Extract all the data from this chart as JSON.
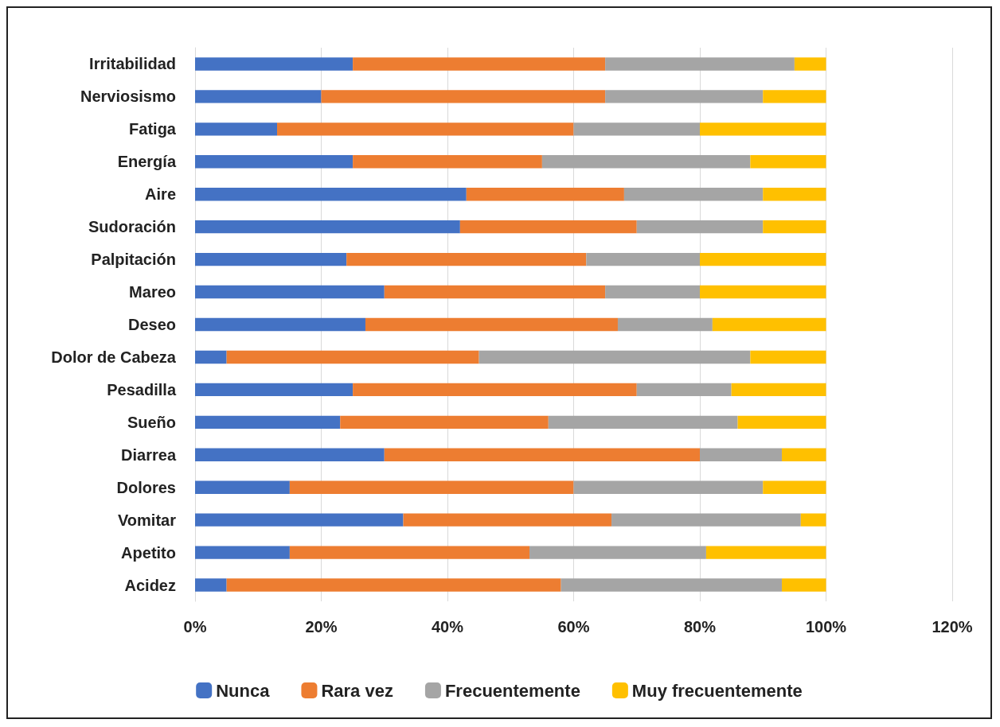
{
  "chart_data": {
    "type": "bar",
    "orientation": "horizontal",
    "stacked": true,
    "categories": [
      "Irritabilidad",
      "Nerviosismo",
      "Fatiga",
      "Energía",
      "Aire",
      "Sudoración",
      "Palpitación",
      "Mareo",
      "Deseo",
      "Dolor de Cabeza",
      "Pesadilla",
      "Sueño",
      "Diarrea",
      "Dolores",
      "Vomitar",
      "Apetito",
      "Acidez"
    ],
    "series": [
      {
        "name": "Nunca",
        "color": "#4472c4",
        "values": [
          25,
          20,
          13,
          25,
          43,
          42,
          24,
          30,
          27,
          5,
          25,
          23,
          30,
          15,
          33,
          15,
          5
        ]
      },
      {
        "name": "Rara vez",
        "color": "#ed7d31",
        "values": [
          40,
          45,
          47,
          30,
          25,
          28,
          38,
          35,
          40,
          40,
          45,
          33,
          50,
          45,
          33,
          38,
          53
        ]
      },
      {
        "name": "Frecuentemente",
        "color": "#a5a5a5",
        "values": [
          30,
          25,
          20,
          33,
          22,
          20,
          18,
          15,
          15,
          43,
          15,
          30,
          13,
          30,
          30,
          28,
          35
        ]
      },
      {
        "name": "Muy frecuentemente",
        "color": "#ffc000",
        "values": [
          5,
          10,
          20,
          12,
          10,
          10,
          20,
          20,
          18,
          12,
          15,
          14,
          7,
          10,
          4,
          19,
          7
        ]
      }
    ],
    "xlim": [
      0,
      120
    ],
    "xticks": [
      {
        "value": 0,
        "label": "0%"
      },
      {
        "value": 20,
        "label": "20%"
      },
      {
        "value": 40,
        "label": "40%"
      },
      {
        "value": 60,
        "label": "60%"
      },
      {
        "value": 80,
        "label": "80%"
      },
      {
        "value": 100,
        "label": "100%"
      },
      {
        "value": 120,
        "label": "120%"
      }
    ],
    "grid": "x",
    "legend": "bottom"
  }
}
